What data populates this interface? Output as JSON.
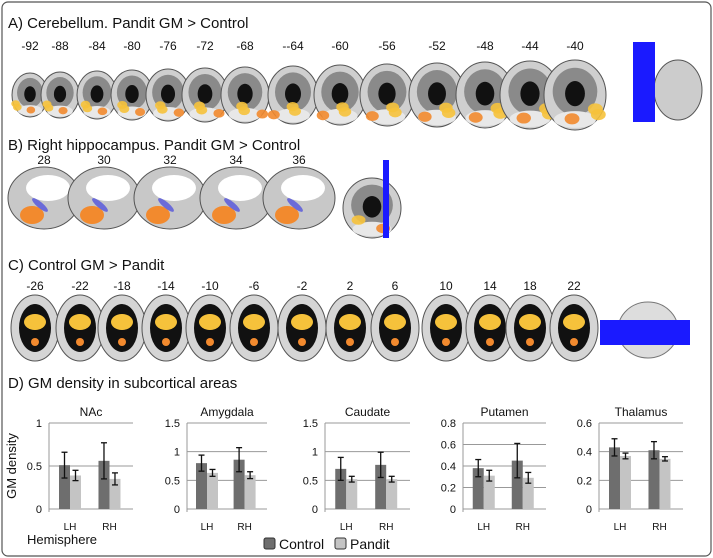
{
  "panels": {
    "a": {
      "title": "A) Cerebellum. Pandit GM > Control",
      "slices": [
        "-92",
        "-88",
        "-84",
        "-80",
        "-76",
        "-72",
        "-68",
        "--64",
        "-60",
        "-56",
        "-52",
        "-48",
        "-44",
        "-40"
      ]
    },
    "b": {
      "title": "B) Right hippocampus. Pandit GM > Control",
      "slices": [
        "28",
        "30",
        "32",
        "34",
        "36"
      ]
    },
    "c": {
      "title": "C) Control GM > Pandit",
      "slices": [
        "-26",
        "-22",
        "-18",
        "-14",
        "-10",
        "-6",
        "-2",
        "2",
        "6",
        "10",
        "14",
        "18",
        "22"
      ]
    },
    "d": {
      "title": "D) GM density in subcortical areas"
    }
  },
  "colors": {
    "control": "#6e6e6e",
    "pandit": "#c4c4c4",
    "locator": "#1a1aff",
    "activation": "#f28a2e"
  },
  "chart_data": {
    "type": "bar",
    "ylabel": "GM density",
    "xlabel": "Hemisphere",
    "legend": {
      "position": "bottom",
      "entries": [
        "Control",
        "Pandit"
      ]
    },
    "grid": true,
    "error_bars": true,
    "categories": [
      "LH",
      "RH"
    ],
    "subplots": [
      {
        "title": "NAc",
        "ylim": [
          0,
          1
        ],
        "yticks": [
          "0",
          "0.5",
          "1"
        ],
        "ytick_values": [
          0,
          0.5,
          1
        ],
        "series": [
          {
            "name": "Control",
            "values": [
              0.51,
              0.56
            ],
            "errors": [
              0.15,
              0.21
            ]
          },
          {
            "name": "Pandit",
            "values": [
              0.39,
              0.35
            ],
            "errors": [
              0.06,
              0.07
            ]
          }
        ]
      },
      {
        "title": "Amygdala",
        "ylim": [
          0,
          1.5
        ],
        "yticks": [
          "0",
          "0.5",
          "1",
          "1.5"
        ],
        "ytick_values": [
          0,
          0.5,
          1,
          1.5
        ],
        "series": [
          {
            "name": "Control",
            "values": [
              0.8,
              0.86
            ],
            "errors": [
              0.14,
              0.21
            ]
          },
          {
            "name": "Pandit",
            "values": [
              0.63,
              0.59
            ],
            "errors": [
              0.06,
              0.06
            ]
          }
        ]
      },
      {
        "title": "Caudate",
        "ylim": [
          0,
          1.5
        ],
        "yticks": [
          "0",
          "0.5",
          "1",
          "1.5"
        ],
        "ytick_values": [
          0,
          0.5,
          1,
          1.5
        ],
        "series": [
          {
            "name": "Control",
            "values": [
              0.7,
              0.77
            ],
            "errors": [
              0.2,
              0.22
            ]
          },
          {
            "name": "Pandit",
            "values": [
              0.52,
              0.52
            ],
            "errors": [
              0.05,
              0.05
            ]
          }
        ]
      },
      {
        "title": "Putamen",
        "ylim": [
          0,
          0.8
        ],
        "yticks": [
          "0",
          "0.2",
          "0.4",
          "0.6",
          "0.8"
        ],
        "ytick_values": [
          0,
          0.2,
          0.4,
          0.6,
          0.8
        ],
        "series": [
          {
            "name": "Control",
            "values": [
              0.38,
              0.45
            ],
            "errors": [
              0.08,
              0.16
            ]
          },
          {
            "name": "Pandit",
            "values": [
              0.31,
              0.29
            ],
            "errors": [
              0.05,
              0.05
            ]
          }
        ]
      },
      {
        "title": "Thalamus",
        "ylim": [
          0,
          0.6
        ],
        "yticks": [
          "0",
          "0.2",
          "0.4",
          "0.6"
        ],
        "ytick_values": [
          0,
          0.2,
          0.4,
          0.6
        ],
        "series": [
          {
            "name": "Control",
            "values": [
              0.43,
              0.41
            ],
            "errors": [
              0.06,
              0.06
            ]
          },
          {
            "name": "Pandit",
            "values": [
              0.37,
              0.35
            ],
            "errors": [
              0.02,
              0.015
            ]
          }
        ]
      }
    ]
  }
}
